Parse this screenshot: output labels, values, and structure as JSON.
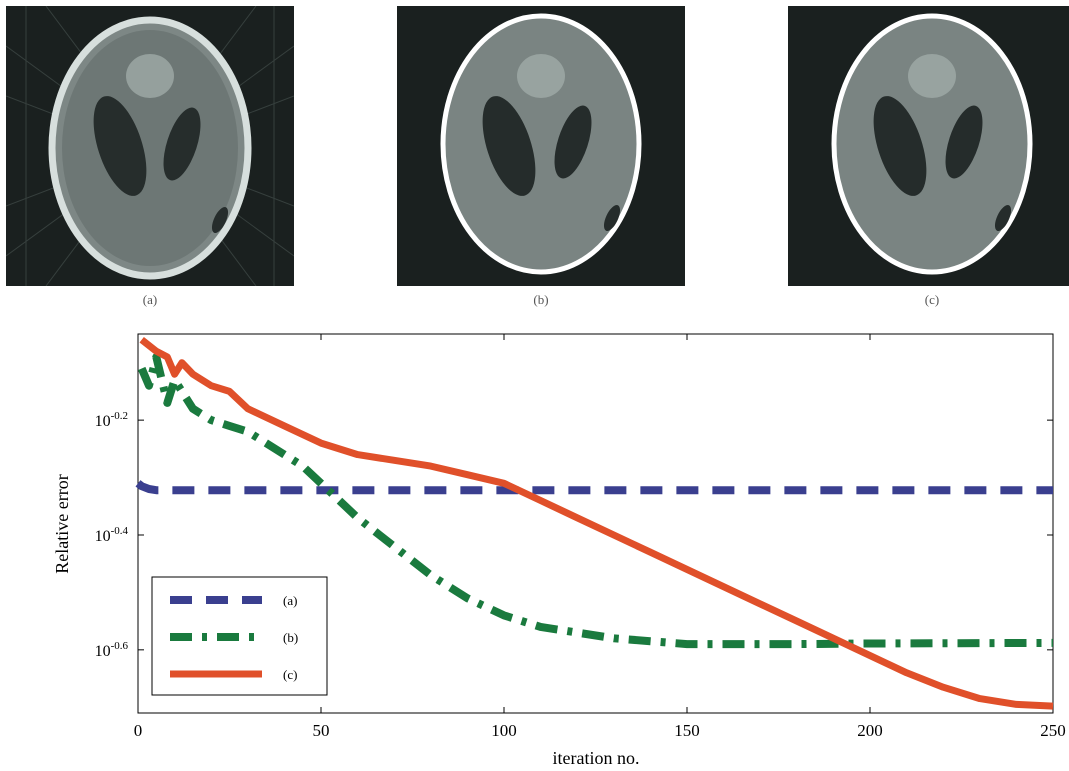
{
  "panels": [
    {
      "label": "(a)"
    },
    {
      "label": "(b)"
    },
    {
      "label": "(c)"
    }
  ],
  "chart_data": {
    "type": "line",
    "xlabel": "iteration no.",
    "ylabel": "Relative error",
    "xlim": [
      0,
      250
    ],
    "ylim": [
      -0.71,
      -0.05
    ],
    "y_scale": "log10",
    "x_ticks": [
      "0",
      "50",
      "100",
      "150",
      "200",
      "250"
    ],
    "y_ticks": [
      {
        "value": -0.2,
        "base": "10",
        "exp": "-0.2"
      },
      {
        "value": -0.4,
        "base": "10",
        "exp": "-0.4"
      },
      {
        "value": -0.6,
        "base": "10",
        "exp": "-0.6"
      }
    ],
    "grid": false,
    "legend_position": "bottom-left",
    "series": [
      {
        "name": "(a)",
        "color": "#3a3f8f",
        "style": "dashed",
        "x": [
          0,
          1,
          3,
          5,
          10,
          250
        ],
        "y": [
          -0.31,
          -0.315,
          -0.32,
          -0.322,
          -0.322,
          -0.322
        ]
      },
      {
        "name": "(b)",
        "color": "#1a7a3e",
        "style": "dashdot",
        "x": [
          1,
          3,
          5,
          8,
          10,
          15,
          20,
          25,
          30,
          35,
          40,
          45,
          50,
          55,
          60,
          70,
          80,
          90,
          100,
          110,
          120,
          130,
          140,
          150,
          160,
          180,
          200,
          250
        ],
        "y": [
          -0.11,
          -0.14,
          -0.09,
          -0.17,
          -0.13,
          -0.18,
          -0.2,
          -0.21,
          -0.22,
          -0.24,
          -0.26,
          -0.28,
          -0.31,
          -0.34,
          -0.37,
          -0.42,
          -0.47,
          -0.51,
          -0.54,
          -0.56,
          -0.57,
          -0.58,
          -0.585,
          -0.59,
          -0.59,
          -0.59,
          -0.589,
          -0.588
        ]
      },
      {
        "name": "(c)",
        "color": "#e0502a",
        "style": "solid",
        "x": [
          1,
          3,
          5,
          8,
          10,
          12,
          15,
          20,
          25,
          30,
          40,
          50,
          60,
          70,
          80,
          90,
          100,
          110,
          120,
          130,
          140,
          150,
          160,
          170,
          180,
          190,
          200,
          210,
          220,
          230,
          240,
          250
        ],
        "y": [
          -0.06,
          -0.07,
          -0.08,
          -0.09,
          -0.12,
          -0.1,
          -0.12,
          -0.14,
          -0.15,
          -0.18,
          -0.21,
          -0.24,
          -0.26,
          -0.27,
          -0.28,
          -0.295,
          -0.31,
          -0.34,
          -0.37,
          -0.4,
          -0.43,
          -0.46,
          -0.49,
          -0.52,
          -0.55,
          -0.58,
          -0.61,
          -0.64,
          -0.665,
          -0.685,
          -0.695,
          -0.698
        ]
      }
    ]
  }
}
